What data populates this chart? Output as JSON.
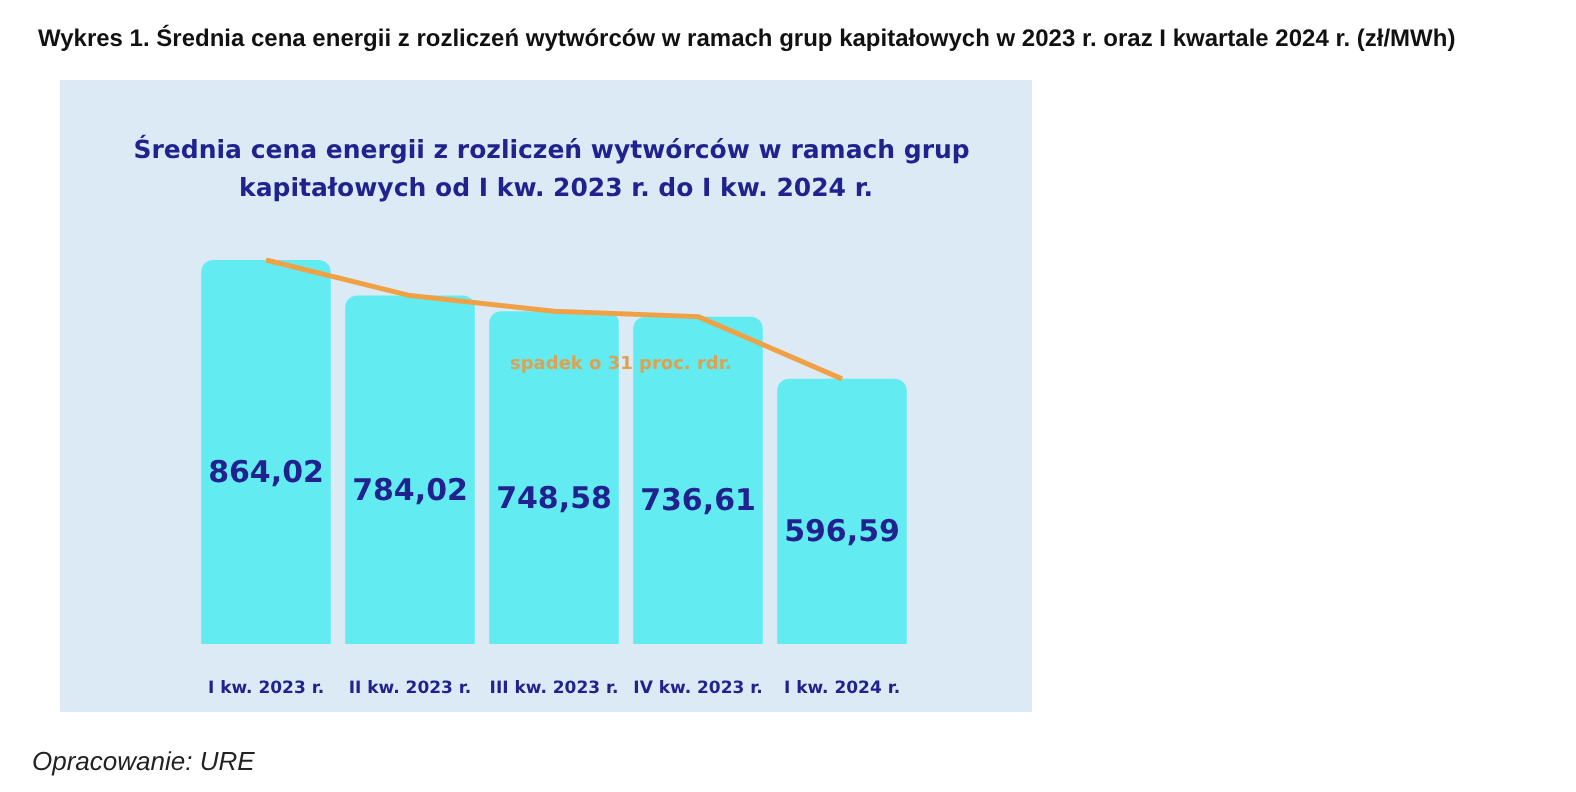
{
  "chart_data": {
    "type": "bar",
    "title": "Wykres 1. Średnia cena energii z rozliczeń wytwórców w ramach grup kapitałowych w 2023 r. oraz I kwartale 2024 r. (zł/MWh)",
    "subtitle": "Średnia cena energii z rozliczeń wytwórców w ramach grup kapitałowych od I kw. 2023 r. do I kw. 2024 r.",
    "categories": [
      "I kw. 2023 r.",
      "II kw. 2023 r.",
      "III kw. 2023 r.",
      "IV kw. 2023 r.",
      "I kw. 2024 r."
    ],
    "series": [
      {
        "color": "#62ecf2",
        "values": [
          864.02,
          784.02,
          748.58,
          736.61,
          596.59
        ],
        "value_labels": [
          "864,02",
          "784,02",
          "748,58",
          "736,61",
          "596,59"
        ]
      },
      {
        "type": "line",
        "color": "#f0a045",
        "values": [
          864.02,
          784.02,
          748.58,
          736.61,
          596.59
        ]
      }
    ],
    "annotations": [
      "spadek o 31 proc. rdr.",
      "Opracowanie: URE"
    ],
    "marker": "none"
  }
}
